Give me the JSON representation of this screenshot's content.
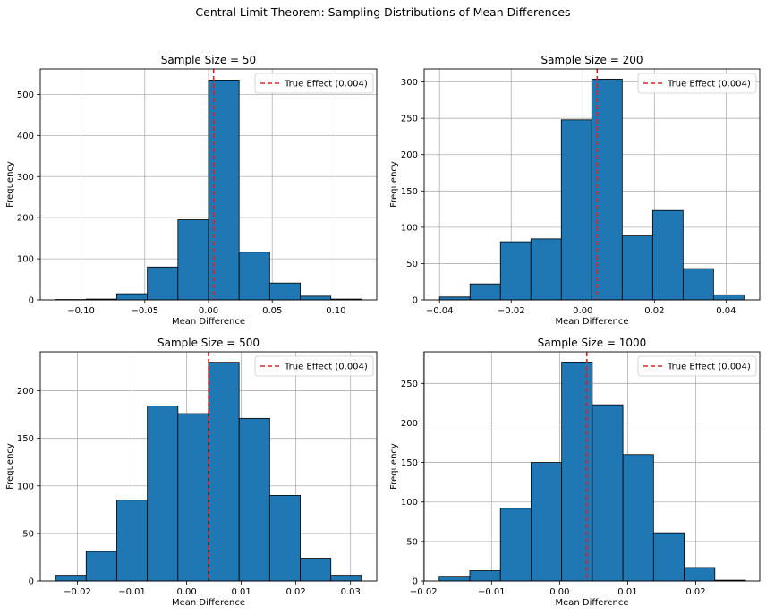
{
  "suptitle": "Central Limit Theorem: Sampling Distributions of Mean Differences",
  "colors": {
    "bar": "#1f77b4",
    "edge": "#000000",
    "ref_line": "#d62728",
    "grid": "#b0b0b0"
  },
  "chart_data": [
    {
      "type": "bar",
      "title": "Sample Size = 50",
      "xlabel": "Mean Difference",
      "ylabel": "Frequency",
      "grid": true,
      "legend_position": "top-right",
      "legend": "True Effect (0.004)",
      "true_effect": 0.004,
      "xlim": [
        -0.132,
        0.132
      ],
      "ylim": [
        0,
        562
      ],
      "xticks": [
        -0.1,
        -0.05,
        0.0,
        0.05,
        0.1
      ],
      "xtick_labels": [
        "−0.10",
        "−0.05",
        "0.00",
        "0.05",
        "0.10"
      ],
      "yticks": [
        0,
        100,
        200,
        300,
        400,
        500
      ],
      "bin_edges": [
        -0.12,
        -0.096,
        -0.072,
        -0.048,
        -0.024,
        0.0,
        0.024,
        0.048,
        0.072,
        0.096,
        0.12
      ],
      "values": [
        1,
        2,
        15,
        80,
        195,
        535,
        116,
        41,
        9,
        2
      ]
    },
    {
      "type": "bar",
      "title": "Sample Size = 200",
      "xlabel": "Mean Difference",
      "ylabel": "Frequency",
      "grid": true,
      "legend_position": "top-right",
      "legend": "True Effect (0.004)",
      "true_effect": 0.004,
      "xlim": [
        -0.0443,
        0.0494
      ],
      "ylim": [
        0,
        318
      ],
      "xticks": [
        -0.04,
        -0.02,
        0.0,
        0.02,
        0.04
      ],
      "xtick_labels": [
        "−0.04",
        "−0.02",
        "0.00",
        "0.02",
        "0.04"
      ],
      "yticks": [
        0,
        50,
        100,
        150,
        200,
        250,
        300
      ],
      "bin_edges": [
        -0.04,
        -0.0315,
        -0.023,
        -0.0145,
        -0.006,
        0.0025,
        0.011,
        0.0195,
        0.028,
        0.0365,
        0.045
      ],
      "values": [
        4,
        22,
        80,
        84,
        248,
        304,
        88,
        123,
        43,
        7
      ]
    },
    {
      "type": "bar",
      "title": "Sample Size = 500",
      "xlabel": "Mean Difference",
      "ylabel": "Frequency",
      "grid": true,
      "legend_position": "top-right",
      "legend": "True Effect (0.004)",
      "true_effect": 0.004,
      "xlim": [
        -0.0268,
        0.0348
      ],
      "ylim": [
        0,
        241
      ],
      "xticks": [
        -0.02,
        -0.01,
        0.0,
        0.01,
        0.02,
        0.03
      ],
      "xtick_labels": [
        "−0.02",
        "−0.01",
        "0.00",
        "0.01",
        "0.02",
        "0.03"
      ],
      "yticks": [
        0,
        50,
        100,
        150,
        200
      ],
      "bin_edges": [
        -0.024,
        -0.0184,
        -0.0128,
        -0.0072,
        -0.0016,
        0.004,
        0.0096,
        0.0152,
        0.0208,
        0.0264,
        0.032
      ],
      "values": [
        6,
        31,
        85,
        184,
        176,
        230,
        171,
        90,
        24,
        6
      ]
    },
    {
      "type": "bar",
      "title": "Sample Size = 1000",
      "xlabel": "Mean Difference",
      "ylabel": "Frequency",
      "grid": true,
      "legend_position": "top-right",
      "legend": "True Effect (0.004)",
      "true_effect": 0.004,
      "xlim": [
        -0.0199,
        0.0294
      ],
      "ylim": [
        0,
        290
      ],
      "xticks": [
        -0.02,
        -0.01,
        0.0,
        0.01,
        0.02
      ],
      "xtick_labels": [
        "−0.02",
        "−0.01",
        "0.00",
        "0.01",
        "0.02"
      ],
      "yticks": [
        0,
        50,
        100,
        150,
        200,
        250
      ],
      "bin_edges": [
        -0.0177,
        -0.0132,
        -0.0087,
        -0.0042,
        0.0003,
        0.0048,
        0.0093,
        0.0138,
        0.0183,
        0.0228,
        0.0273
      ],
      "values": [
        6,
        13,
        92,
        150,
        277,
        223,
        160,
        61,
        17,
        1
      ]
    }
  ]
}
